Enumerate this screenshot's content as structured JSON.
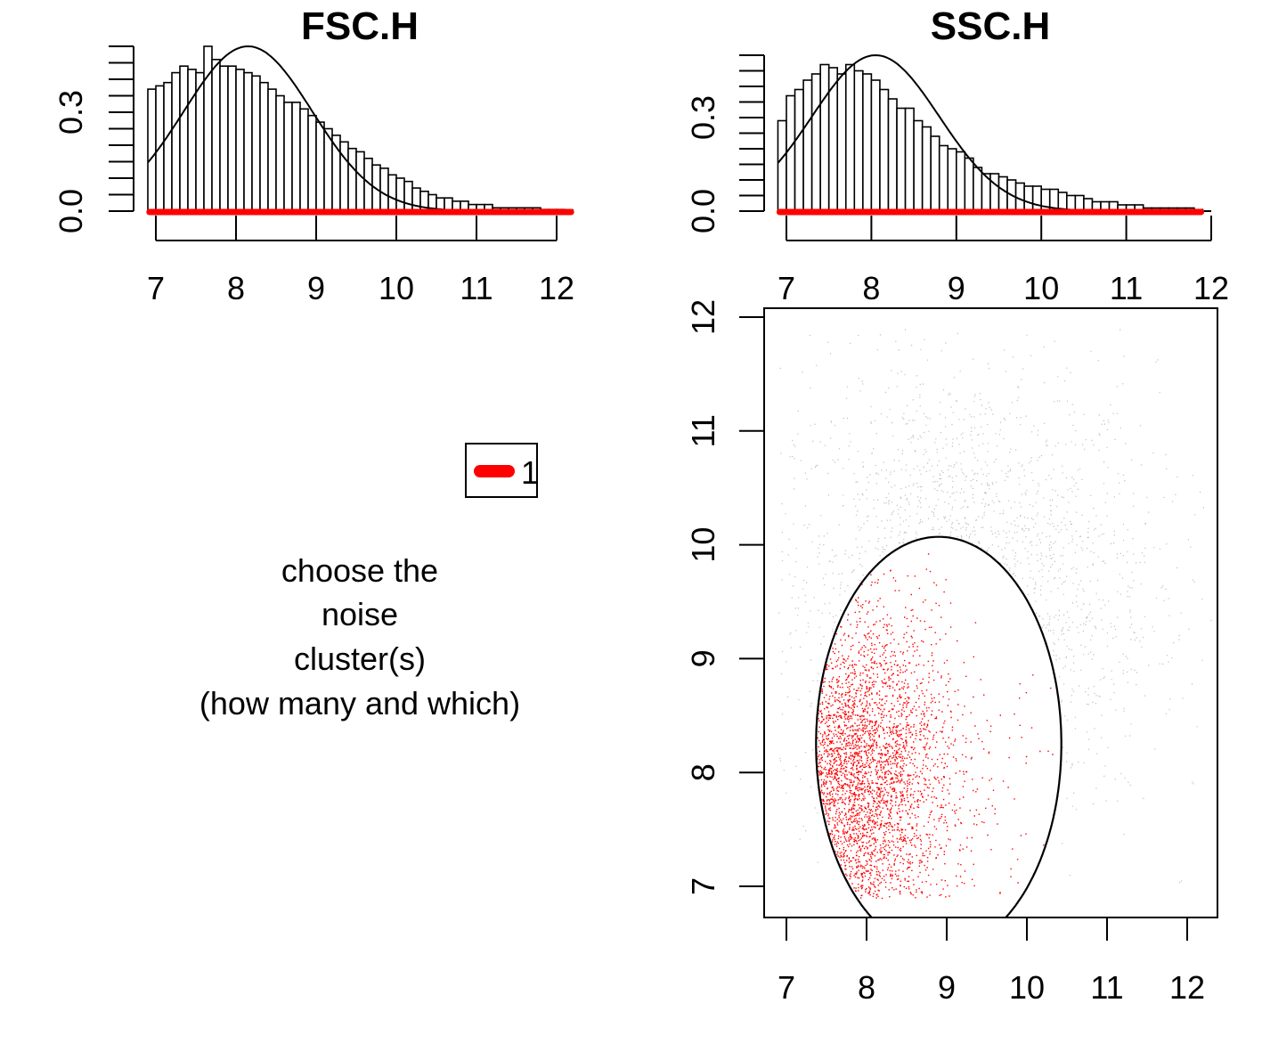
{
  "colors": {
    "cluster": "#ff0000",
    "noise_points": "#bebebe",
    "axis": "#000000",
    "background": "#ffffff"
  },
  "message": {
    "lines": [
      "choose the",
      "noise",
      "cluster(s)",
      "(how many and which)"
    ]
  },
  "legend": {
    "label": "1",
    "color": "#ff0000"
  },
  "chart_data": [
    {
      "id": "fsc",
      "type": "bar",
      "subtype": "histogram with fitted density curve",
      "title": "FSC.H",
      "xlabel": "",
      "ylabel": "",
      "xlim": [
        6.9,
        12.2
      ],
      "ylim": [
        0,
        0.5
      ],
      "x_ticks": [
        "7",
        "8",
        "9",
        "10",
        "11",
        "12"
      ],
      "y_ticks": [
        "0.0",
        "0.3"
      ],
      "bin_start": 6.9,
      "bin_width": 0.1,
      "values": [
        0.37,
        0.38,
        0.39,
        0.42,
        0.44,
        0.43,
        0.42,
        0.5,
        0.46,
        0.44,
        0.44,
        0.43,
        0.42,
        0.41,
        0.39,
        0.37,
        0.35,
        0.33,
        0.33,
        0.31,
        0.29,
        0.27,
        0.25,
        0.23,
        0.21,
        0.19,
        0.18,
        0.16,
        0.14,
        0.13,
        0.11,
        0.1,
        0.09,
        0.07,
        0.06,
        0.05,
        0.04,
        0.04,
        0.03,
        0.03,
        0.02,
        0.02,
        0.02,
        0.01,
        0.01,
        0.01,
        0.01,
        0.01,
        0.01,
        0.005,
        0.005,
        0.005,
        0.004
      ],
      "density_curve": {
        "mean": 8.15,
        "sd": 0.8,
        "peak": 0.5
      },
      "cluster_rug": {
        "color": "#ff0000",
        "from": 6.92,
        "to": 12.18
      }
    },
    {
      "id": "ssc",
      "type": "bar",
      "subtype": "histogram with fitted density curve",
      "title": "SSC.H",
      "xlabel": "",
      "ylabel": "",
      "xlim": [
        6.9,
        12.0
      ],
      "ylim": [
        0,
        0.5
      ],
      "x_ticks": [
        "7",
        "8",
        "9",
        "10",
        "11",
        "12"
      ],
      "y_ticks": [
        "0.0",
        "0.3"
      ],
      "bin_start": 6.9,
      "bin_width": 0.1,
      "values": [
        0.29,
        0.37,
        0.39,
        0.42,
        0.44,
        0.47,
        0.46,
        0.44,
        0.47,
        0.45,
        0.44,
        0.42,
        0.39,
        0.36,
        0.33,
        0.33,
        0.29,
        0.27,
        0.24,
        0.21,
        0.2,
        0.19,
        0.17,
        0.14,
        0.12,
        0.12,
        0.11,
        0.1,
        0.09,
        0.08,
        0.08,
        0.07,
        0.07,
        0.06,
        0.05,
        0.05,
        0.04,
        0.03,
        0.03,
        0.03,
        0.02,
        0.02,
        0.02,
        0.01,
        0.01,
        0.01,
        0.01,
        0.01,
        0.01,
        0.005
      ],
      "density_curve": {
        "mean": 8.05,
        "sd": 0.75,
        "peak": 0.5
      },
      "cluster_rug": {
        "color": "#ff0000",
        "from": 6.92,
        "to": 11.88
      }
    },
    {
      "id": "scatter",
      "type": "scatter",
      "title": "",
      "xlabel": "",
      "ylabel": "",
      "xlim": [
        6.7,
        12.4
      ],
      "ylim": [
        6.7,
        12.0
      ],
      "x_ticks": [
        "7",
        "8",
        "9",
        "10",
        "11",
        "12"
      ],
      "y_ticks": [
        "7",
        "8",
        "9",
        "10",
        "11",
        "12"
      ],
      "series": [
        {
          "color": "#ff0000",
          "center": [
            7.8,
            7.9
          ],
          "spread": [
            0.55,
            0.7
          ],
          "min_x": 6.9,
          "min_y": 6.9
        },
        {
          "color": "#bebebe",
          "center": [
            9.2,
            9.6
          ],
          "spread": [
            1.2,
            1.0
          ]
        }
      ],
      "boundary_ellipse": {
        "center": [
          8.9,
          8.25
        ],
        "semi_axes": [
          1.53,
          1.82
        ]
      }
    }
  ]
}
